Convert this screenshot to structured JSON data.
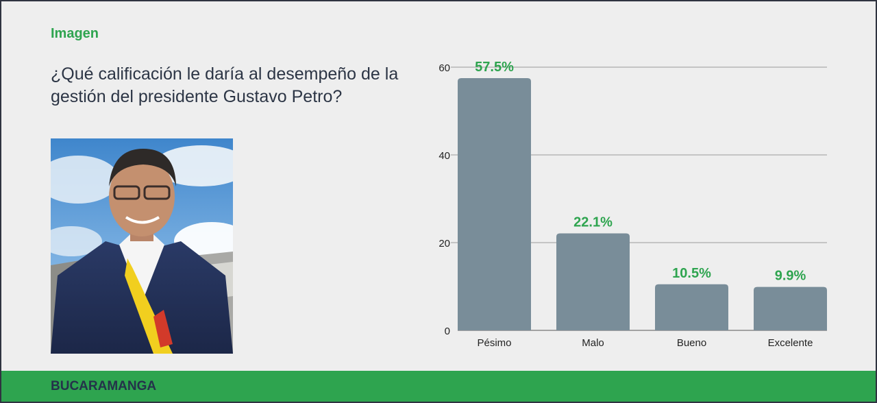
{
  "header": {
    "eyebrow": "Imagen",
    "question": "¿Qué calificación le daría al desempeño de la gestión del presidente Gustavo Petro?"
  },
  "footer": {
    "label": "BUCARAMANGA"
  },
  "photo": {
    "icon": "portrait-photo"
  },
  "colors": {
    "accent": "#2ea44f",
    "bar": "#798d99",
    "text_dark": "#2c3545",
    "grid": "#9a9a9a",
    "background": "#eeeeee"
  },
  "chart_data": {
    "type": "bar",
    "categories": [
      "Pésimo",
      "Malo",
      "Bueno",
      "Excelente"
    ],
    "values": [
      57.5,
      22.1,
      10.5,
      9.9
    ],
    "value_labels": [
      "57.5%",
      "22.1%",
      "10.5%",
      "9.9%"
    ],
    "yticks": [
      0,
      20,
      40,
      60
    ],
    "ylim": [
      0,
      60
    ],
    "grid": true,
    "title": "",
    "xlabel": "",
    "ylabel": ""
  }
}
